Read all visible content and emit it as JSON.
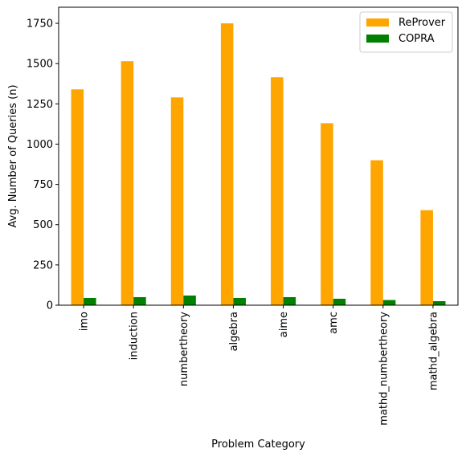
{
  "chart_data": {
    "type": "bar",
    "xlabel": "Problem Category",
    "ylabel": "Avg. Number of Queries (n)",
    "ylim": [
      0,
      1850
    ],
    "yticks": [
      0,
      250,
      500,
      750,
      1000,
      1250,
      1500,
      1750
    ],
    "ytick_labels": [
      "0",
      "250",
      "500",
      "750",
      "1000",
      "1250",
      "1500",
      "1750"
    ],
    "categories": [
      "imo",
      "induction",
      "numbertheory",
      "algebra",
      "aime",
      "amc",
      "mathd_numbertheory",
      "mathd_algebra"
    ],
    "series": [
      {
        "name": "ReProver",
        "color": "#ffa500",
        "values": [
          1340,
          1515,
          1290,
          1750,
          1415,
          1130,
          900,
          590
        ]
      },
      {
        "name": "COPRA",
        "color": "#008000",
        "values": [
          45,
          50,
          60,
          45,
          50,
          40,
          32,
          25
        ]
      }
    ],
    "legend": {
      "position": "top-right"
    },
    "grid": false
  }
}
